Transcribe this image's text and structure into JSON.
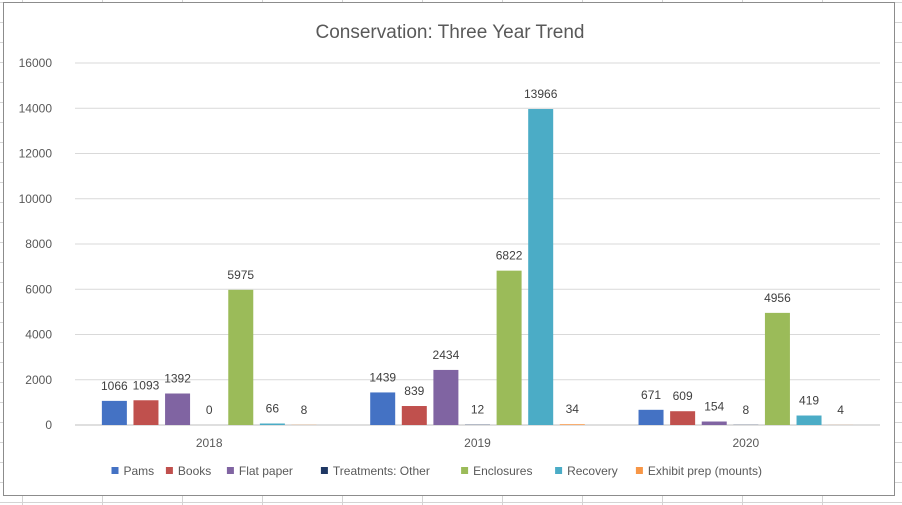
{
  "chart_data": {
    "type": "bar",
    "title": "Conservation: Three Year Trend",
    "xlabel": "",
    "ylabel": "",
    "ylim": [
      0,
      16000
    ],
    "yticks": [
      0,
      2000,
      4000,
      6000,
      8000,
      10000,
      12000,
      14000,
      16000
    ],
    "grid": true,
    "legend": "bottom",
    "categories": [
      "2018",
      "2019",
      "2020"
    ],
    "series": [
      {
        "name": "Pams",
        "color": "#4472c4",
        "values": [
          1066,
          1439,
          671
        ]
      },
      {
        "name": "Books",
        "color": "#c0504d",
        "values": [
          1093,
          839,
          609
        ]
      },
      {
        "name": "Flat paper",
        "color": "#8064a2",
        "values": [
          1392,
          2434,
          154
        ]
      },
      {
        "name": "Treatments: Other",
        "color": "#1f3864",
        "values": [
          0,
          12,
          8
        ]
      },
      {
        "name": "Enclosures",
        "color": "#9bbb59",
        "values": [
          5975,
          6822,
          4956
        ]
      },
      {
        "name": "Recovery",
        "color": "#4bacc6",
        "values": [
          66,
          13966,
          419
        ]
      },
      {
        "name": "Exhibit prep (mounts)",
        "color": "#f79646",
        "values": [
          8,
          34,
          4
        ]
      }
    ]
  }
}
